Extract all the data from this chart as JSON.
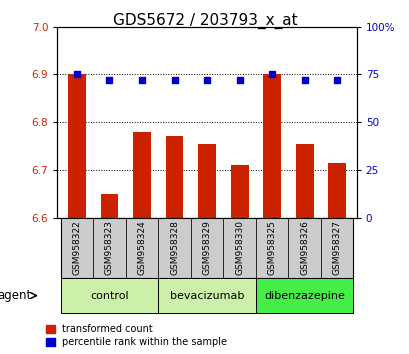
{
  "title": "GDS5672 / 203793_x_at",
  "samples": [
    "GSM958322",
    "GSM958323",
    "GSM958324",
    "GSM958328",
    "GSM958329",
    "GSM958330",
    "GSM958325",
    "GSM958326",
    "GSM958327"
  ],
  "transformed_count": [
    6.9,
    6.65,
    6.78,
    6.77,
    6.755,
    6.71,
    6.9,
    6.755,
    6.715
  ],
  "percentile_rank": [
    75,
    72,
    72,
    72,
    72,
    72,
    75,
    72,
    72
  ],
  "groups": [
    {
      "label": "control",
      "start": 0,
      "end": 3,
      "color": "#ccf0aa"
    },
    {
      "label": "bevacizumab",
      "start": 3,
      "end": 6,
      "color": "#ccf0aa"
    },
    {
      "label": "dibenzazepine",
      "start": 6,
      "end": 9,
      "color": "#44ee44"
    }
  ],
  "ylim_left": [
    6.6,
    7.0
  ],
  "ylim_right": [
    0,
    100
  ],
  "yticks_left": [
    6.6,
    6.7,
    6.8,
    6.9,
    7.0
  ],
  "yticks_right": [
    0,
    25,
    50,
    75,
    100
  ],
  "ytick_labels_right": [
    "0",
    "25",
    "50",
    "75",
    "100%"
  ],
  "bar_color": "#cc2200",
  "dot_color": "#0000cc",
  "bar_width": 0.55,
  "agent_label": "agent",
  "legend_bar": "transformed count",
  "legend_dot": "percentile rank within the sample",
  "tick_label_color_left": "#cc2200",
  "tick_label_color_right": "#0000cc",
  "title_fontsize": 11,
  "tick_fontsize": 7.5,
  "sample_fontsize": 6.5,
  "group_fontsize": 8,
  "legend_fontsize": 7,
  "agent_fontsize": 8.5
}
